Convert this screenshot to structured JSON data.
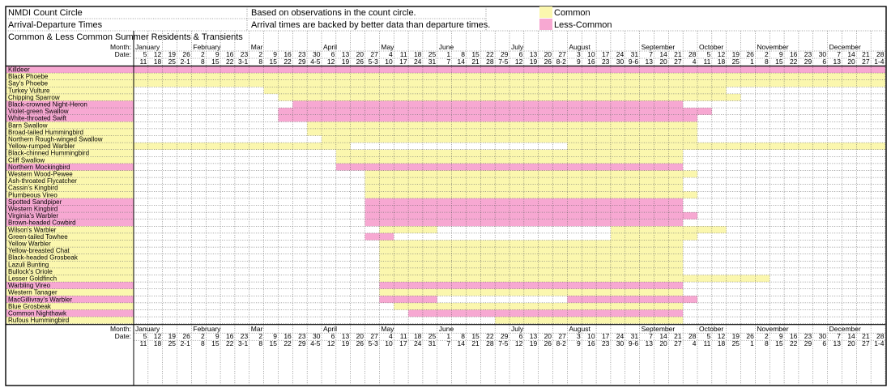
{
  "header": {
    "title": "NMDI Count Circle",
    "subtitle": "Arrival-Departure Times",
    "group": "Common & Less Common Summer Residents & Transients",
    "note1": "Based on observations in the count circle.",
    "note2": "Arrival times are backed by better data than departure times."
  },
  "legend": [
    {
      "label": "Common",
      "color": "#fbf7ae"
    },
    {
      "label": "Less-Common",
      "color": "#f7a8d2"
    }
  ],
  "axis_labels": {
    "month": "Month:",
    "date": "Date:"
  },
  "chart_data": {
    "type": "table",
    "columns": [
      {
        "d1": "5",
        "d2": "11",
        "m": "January"
      },
      {
        "d1": "12",
        "d2": "18",
        "m": ""
      },
      {
        "d1": "19",
        "d2": "25",
        "m": ""
      },
      {
        "d1": "26",
        "d2": "2-1",
        "m": ""
      },
      {
        "d1": "2",
        "d2": "8",
        "m": "February"
      },
      {
        "d1": "9",
        "d2": "15",
        "m": ""
      },
      {
        "d1": "16",
        "d2": "22",
        "m": ""
      },
      {
        "d1": "23",
        "d2": "3-1",
        "m": ""
      },
      {
        "d1": "2",
        "d2": "8",
        "m": "Mar"
      },
      {
        "d1": "9",
        "d2": "15",
        "m": ""
      },
      {
        "d1": "16",
        "d2": "22",
        "m": ""
      },
      {
        "d1": "23",
        "d2": "29",
        "m": ""
      },
      {
        "d1": "30",
        "d2": "4-5",
        "m": ""
      },
      {
        "d1": "6",
        "d2": "12",
        "m": "April"
      },
      {
        "d1": "13",
        "d2": "19",
        "m": ""
      },
      {
        "d1": "20",
        "d2": "26",
        "m": ""
      },
      {
        "d1": "27",
        "d2": "5-3",
        "m": ""
      },
      {
        "d1": "4",
        "d2": "10",
        "m": "May"
      },
      {
        "d1": "11",
        "d2": "17",
        "m": ""
      },
      {
        "d1": "18",
        "d2": "24",
        "m": ""
      },
      {
        "d1": "25",
        "d2": "31",
        "m": ""
      },
      {
        "d1": "1",
        "d2": "7",
        "m": "June"
      },
      {
        "d1": "8",
        "d2": "14",
        "m": ""
      },
      {
        "d1": "15",
        "d2": "21",
        "m": ""
      },
      {
        "d1": "22",
        "d2": "28",
        "m": ""
      },
      {
        "d1": "29",
        "d2": "7-5",
        "m": ""
      },
      {
        "d1": "6",
        "d2": "12",
        "m": "July"
      },
      {
        "d1": "13",
        "d2": "19",
        "m": ""
      },
      {
        "d1": "20",
        "d2": "26",
        "m": ""
      },
      {
        "d1": "27",
        "d2": "8-2",
        "m": ""
      },
      {
        "d1": "3",
        "d2": "9",
        "m": "August"
      },
      {
        "d1": "10",
        "d2": "16",
        "m": ""
      },
      {
        "d1": "17",
        "d2": "23",
        "m": ""
      },
      {
        "d1": "24",
        "d2": "30",
        "m": ""
      },
      {
        "d1": "31",
        "d2": "9-6",
        "m": ""
      },
      {
        "d1": "7",
        "d2": "13",
        "m": "September"
      },
      {
        "d1": "14",
        "d2": "20",
        "m": ""
      },
      {
        "d1": "21",
        "d2": "27",
        "m": ""
      },
      {
        "d1": "28",
        "d2": "4",
        "m": ""
      },
      {
        "d1": "5",
        "d2": "11",
        "m": "October"
      },
      {
        "d1": "12",
        "d2": "18",
        "m": ""
      },
      {
        "d1": "19",
        "d2": "25",
        "m": ""
      },
      {
        "d1": "26",
        "d2": "1",
        "m": ""
      },
      {
        "d1": "2",
        "d2": "8",
        "m": "November"
      },
      {
        "d1": "9",
        "d2": "15",
        "m": ""
      },
      {
        "d1": "16",
        "d2": "22",
        "m": ""
      },
      {
        "d1": "23",
        "d2": "29",
        "m": ""
      },
      {
        "d1": "30",
        "d2": "6",
        "m": ""
      },
      {
        "d1": "7",
        "d2": "13",
        "m": "December"
      },
      {
        "d1": "14",
        "d2": "20",
        "m": ""
      },
      {
        "d1": "21",
        "d2": "27",
        "m": ""
      },
      {
        "d1": "28",
        "d2": "1-4",
        "m": ""
      }
    ],
    "species": [
      {
        "name": "Killdeer",
        "cls": "less",
        "spans": [
          [
            "less",
            0,
            51
          ]
        ]
      },
      {
        "name": "Black Phoebe",
        "cls": "common",
        "spans": [
          [
            "common",
            0,
            51
          ]
        ]
      },
      {
        "name": "Say's Phoebe",
        "cls": "common",
        "spans": [
          [
            "common",
            0,
            51
          ]
        ]
      },
      {
        "name": "Turkey Vulture",
        "cls": "common",
        "spans": [
          [
            "common",
            9,
            40
          ]
        ]
      },
      {
        "name": "Chipping Sparrow",
        "cls": "common",
        "spans": [
          [
            "common",
            10,
            41
          ]
        ]
      },
      {
        "name": "Black-crowned Night-Heron",
        "cls": "less",
        "spans": [
          [
            "less",
            11,
            37
          ]
        ]
      },
      {
        "name": "Violet-green Swallow",
        "cls": "less",
        "spans": [
          [
            "less",
            10,
            39
          ]
        ]
      },
      {
        "name": "White-throated Swift",
        "cls": "less",
        "spans": [
          [
            "less",
            10,
            38
          ]
        ]
      },
      {
        "name": "Barn Swallow",
        "cls": "common",
        "spans": [
          [
            "common",
            12,
            38
          ]
        ]
      },
      {
        "name": "Broad-tailed Hummingbird",
        "cls": "common",
        "spans": [
          [
            "common",
            12,
            38
          ]
        ]
      },
      {
        "name": "Northern Rough-winged Swallow",
        "cls": "common",
        "spans": [
          [
            "common",
            13,
            38
          ]
        ]
      },
      {
        "name": "Yellow-rumped Warbler",
        "cls": "common",
        "spans": [
          [
            "common",
            0,
            14
          ],
          [
            "common",
            30,
            51
          ]
        ]
      },
      {
        "name": "Black-chinned Hummingbird",
        "cls": "common",
        "spans": [
          [
            "common",
            14,
            37
          ]
        ]
      },
      {
        "name": "Cliff Swallow",
        "cls": "common",
        "spans": [
          [
            "common",
            14,
            37
          ]
        ]
      },
      {
        "name": "Northern Mockingbird",
        "cls": "less",
        "spans": [
          [
            "less",
            14,
            37
          ]
        ]
      },
      {
        "name": "Western Wood-Pewee",
        "cls": "common",
        "spans": [
          [
            "common",
            16,
            38
          ]
        ]
      },
      {
        "name": "Ash-throated Flycatcher",
        "cls": "common",
        "spans": [
          [
            "common",
            16,
            37
          ]
        ]
      },
      {
        "name": "Cassin's Kingbird",
        "cls": "common",
        "spans": [
          [
            "common",
            16,
            37
          ]
        ]
      },
      {
        "name": "Plumbeous Vireo",
        "cls": "common",
        "spans": [
          [
            "common",
            16,
            38
          ]
        ]
      },
      {
        "name": "Spotted Sandpiper",
        "cls": "less",
        "spans": [
          [
            "less",
            16,
            37
          ]
        ]
      },
      {
        "name": "Western Kingbird",
        "cls": "less",
        "spans": [
          [
            "less",
            16,
            37
          ]
        ]
      },
      {
        "name": "Virginia's Warbler",
        "cls": "less",
        "spans": [
          [
            "less",
            16,
            38
          ]
        ]
      },
      {
        "name": "Brown-headed Cowbird",
        "cls": "less",
        "spans": [
          [
            "less",
            16,
            37
          ]
        ]
      },
      {
        "name": "Wilson's Warbler",
        "cls": "common",
        "spans": [
          [
            "common",
            17,
            20
          ],
          [
            "common",
            33,
            40
          ]
        ]
      },
      {
        "name": "Green-tailed Towhee",
        "cls": "common",
        "spans": [
          [
            "less",
            16,
            17
          ],
          [
            "common",
            33,
            38
          ]
        ]
      },
      {
        "name": "Yellow Warbler",
        "cls": "common",
        "spans": [
          [
            "common",
            17,
            37
          ]
        ]
      },
      {
        "name": "Yellow-breasted Chat",
        "cls": "common",
        "spans": [
          [
            "common",
            17,
            37
          ]
        ]
      },
      {
        "name": "Black-headed Grosbeak",
        "cls": "common",
        "spans": [
          [
            "common",
            17,
            37
          ]
        ]
      },
      {
        "name": "Lazuli Bunting",
        "cls": "common",
        "spans": [
          [
            "common",
            17,
            37
          ]
        ]
      },
      {
        "name": "Bullock's Oriole",
        "cls": "common",
        "spans": [
          [
            "common",
            17,
            37
          ]
        ]
      },
      {
        "name": "Lesser Goldfinch",
        "cls": "common",
        "spans": [
          [
            "common",
            17,
            43
          ]
        ]
      },
      {
        "name": "Warbling Vireo",
        "cls": "less",
        "spans": [
          [
            "less",
            17,
            37
          ]
        ]
      },
      {
        "name": "Western Tanager",
        "cls": "common",
        "spans": [
          [
            "common",
            17,
            37
          ]
        ]
      },
      {
        "name": "MacGillivray's Warbler",
        "cls": "less",
        "spans": [
          [
            "less",
            17,
            20
          ],
          [
            "less",
            30,
            38
          ]
        ]
      },
      {
        "name": "Blue Grosbeak",
        "cls": "common",
        "spans": [
          [
            "common",
            18,
            37
          ]
        ]
      },
      {
        "name": "Common Nighthawk",
        "cls": "less",
        "spans": [
          [
            "less",
            19,
            37
          ]
        ]
      },
      {
        "name": "Rufous Hummingbird",
        "cls": "common",
        "spans": [
          [
            "common",
            25,
            37
          ]
        ]
      }
    ]
  }
}
